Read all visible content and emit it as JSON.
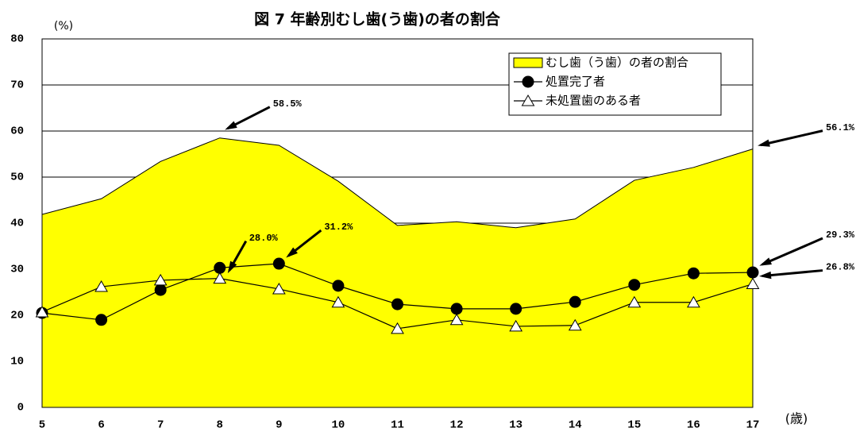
{
  "chart_data": {
    "type": "line",
    "title": "図 7 年齢別むし歯(う歯)の者の割合",
    "y_label": "(%)",
    "x_label": "(歳)",
    "x": [
      5,
      6,
      7,
      8,
      9,
      10,
      11,
      12,
      13,
      14,
      15,
      16,
      17
    ],
    "xlim": [
      5,
      17
    ],
    "xticks": [
      5,
      6,
      7,
      8,
      9,
      10,
      11,
      12,
      13,
      14,
      15,
      16,
      17
    ],
    "ylim": [
      0,
      80
    ],
    "yticks": [
      0,
      10,
      20,
      30,
      40,
      50,
      60,
      70,
      80
    ],
    "grid": true,
    "legend": "upper right",
    "series": [
      {
        "name": "むし歯（う歯）の者の割合",
        "color": "#ffff00",
        "fill": true,
        "marker": "none",
        "values": [
          41.9,
          45.3,
          53.4,
          58.5,
          56.9,
          49.1,
          39.5,
          40.3,
          39.0,
          40.9,
          49.3,
          52.1,
          56.1
        ],
        "value_labels": [
          null,
          null,
          null,
          "58.5%",
          null,
          null,
          null,
          null,
          null,
          null,
          null,
          null,
          "56.1%"
        ]
      },
      {
        "name": "処置完了者",
        "color": "#000000",
        "marker": "circle",
        "values": [
          20.5,
          19.0,
          25.5,
          30.3,
          31.2,
          26.4,
          22.4,
          21.4,
          21.4,
          22.9,
          26.6,
          29.1,
          29.3
        ],
        "value_labels": [
          null,
          null,
          null,
          null,
          "31.2%",
          null,
          null,
          null,
          null,
          null,
          null,
          null,
          "29.3%"
        ]
      },
      {
        "name": "未処置歯のある者",
        "color": "#000000",
        "marker": "triangle",
        "values": [
          20.7,
          26.2,
          27.6,
          28.0,
          25.7,
          22.8,
          17.1,
          19.0,
          17.6,
          17.8,
          22.8,
          22.8,
          26.8
        ],
        "value_labels": [
          null,
          null,
          null,
          "28.0%",
          null,
          null,
          null,
          null,
          null,
          null,
          null,
          null,
          "26.8%"
        ]
      }
    ]
  }
}
